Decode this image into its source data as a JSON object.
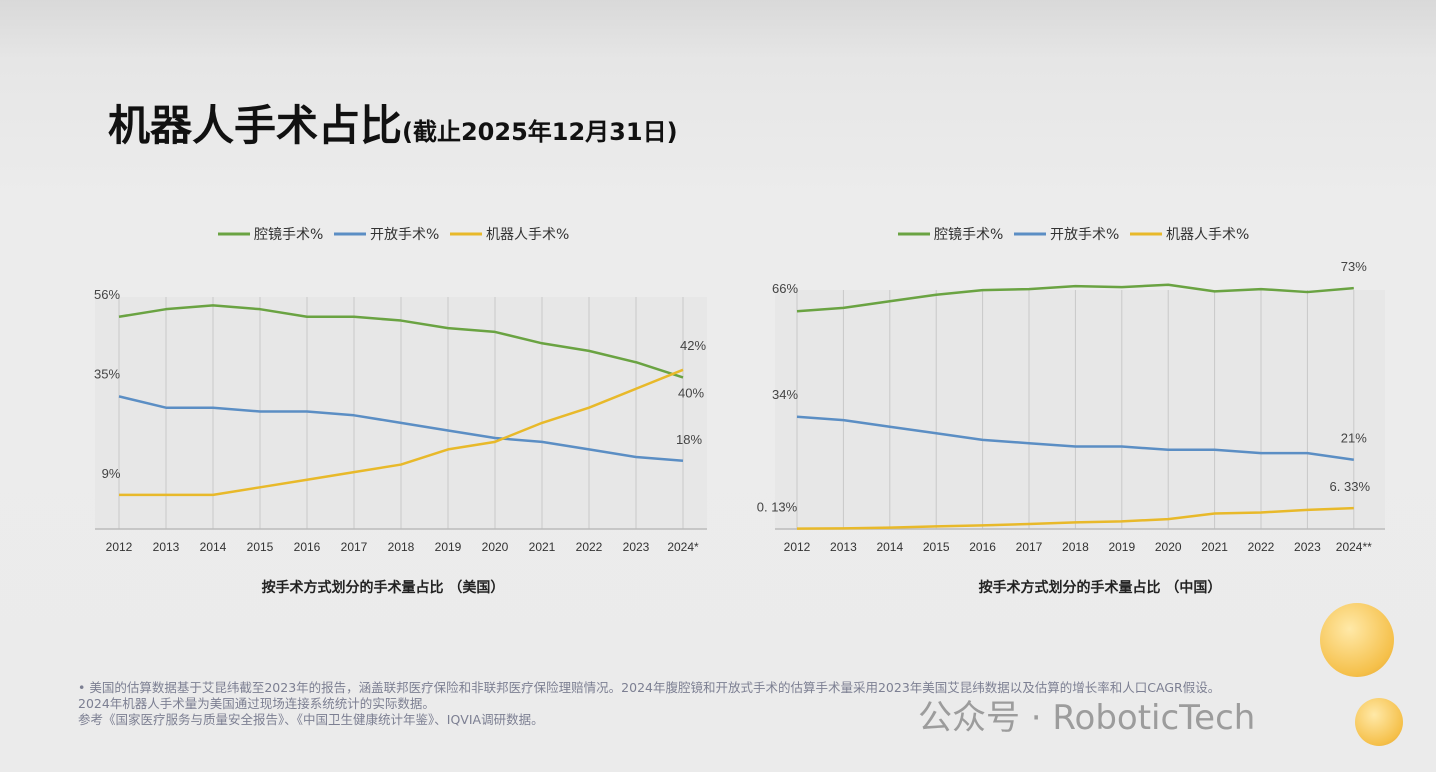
{
  "title": {
    "main": "机器人手术占比",
    "sub": "(截止2025年12月31日)"
  },
  "colors": {
    "laparoscopic": "#6aa342",
    "open": "#5b8ec4",
    "robotic": "#e8b92a"
  },
  "chart_data": [
    {
      "type": "line",
      "caption": "按手术方式划分的手术量占比 （美国）",
      "categories": [
        "2012",
        "2013",
        "2014",
        "2015",
        "2016",
        "2017",
        "2018",
        "2019",
        "2020",
        "2021",
        "2022",
        "2023",
        "2024*"
      ],
      "ylim": [
        0,
        60
      ],
      "grid": "vertical",
      "legend": "top-center",
      "series": [
        {
          "name": "腔镜手术%",
          "key": "laparoscopic",
          "values": [
            56,
            58,
            59,
            58,
            56,
            56,
            55,
            53,
            52,
            49,
            47,
            44,
            40
          ]
        },
        {
          "name": "开放手术%",
          "key": "open",
          "values": [
            35,
            32,
            32,
            31,
            31,
            30,
            28,
            26,
            24,
            23,
            21,
            19,
            18
          ]
        },
        {
          "name": "机器人手术%",
          "key": "robotic",
          "values": [
            9,
            9,
            9,
            11,
            13,
            15,
            17,
            21,
            23,
            28,
            32,
            37,
            42
          ]
        }
      ],
      "data_labels": [
        {
          "series": "laparoscopic",
          "index": 0,
          "text": "56%"
        },
        {
          "series": "open",
          "index": 0,
          "text": "35%"
        },
        {
          "series": "robotic",
          "index": 0,
          "text": "9%"
        },
        {
          "series": "robotic",
          "index": 12,
          "text": "42%"
        },
        {
          "series": "laparoscopic",
          "index": 12,
          "text": "40%"
        },
        {
          "series": "open",
          "index": 12,
          "text": "18%"
        }
      ]
    },
    {
      "type": "line",
      "caption": "按手术方式划分的手术量占比 （中国）",
      "categories": [
        "2012",
        "2013",
        "2014",
        "2015",
        "2016",
        "2017",
        "2018",
        "2019",
        "2020",
        "2021",
        "2022",
        "2023",
        "2024**"
      ],
      "ylim": [
        0,
        73
      ],
      "grid": "vertical",
      "legend": "top-center",
      "series": [
        {
          "name": "腔镜手术%",
          "key": "laparoscopic",
          "values": [
            66,
            67,
            69,
            71,
            72.4,
            72.7,
            73.6,
            73.3,
            74,
            72,
            72.7,
            71.8,
            73
          ]
        },
        {
          "name": "开放手术%",
          "key": "open",
          "values": [
            34,
            33,
            31,
            29,
            27,
            26,
            25,
            25,
            24,
            24,
            23,
            23,
            21
          ]
        },
        {
          "name": "机器人手术%",
          "key": "robotic",
          "values": [
            0.13,
            0.2,
            0.4,
            0.8,
            1.1,
            1.5,
            2,
            2.3,
            3,
            4.7,
            5,
            5.8,
            6.33
          ]
        }
      ],
      "data_labels": [
        {
          "series": "laparoscopic",
          "index": 0,
          "text": "66%"
        },
        {
          "series": "open",
          "index": 0,
          "text": "34%"
        },
        {
          "series": "robotic",
          "index": 0,
          "text": "0. 13%"
        },
        {
          "series": "laparoscopic",
          "index": 12,
          "text": "73%"
        },
        {
          "series": "open",
          "index": 12,
          "text": "21%"
        },
        {
          "series": "robotic",
          "index": 12,
          "text": "6. 33%"
        }
      ]
    }
  ],
  "footnotes": [
    "• 美国的估算数据基于艾昆纬截至2023年的报告，涵盖联邦医疗保险和非联邦医疗保险理赔情况。2024年腹腔镜和开放式手术的估算手术量采用2023年美国艾昆纬数据以及估算的增长率和人口CAGR假设。",
    "2024年机器人手术量为美国通过现场连接系统统计的实际数据。",
    "参考《国家医疗服务与质量安全报告》、《中国卫生健康统计年鉴》、IQVIA调研数据。"
  ],
  "watermark": "公众号 · RoboticTech"
}
